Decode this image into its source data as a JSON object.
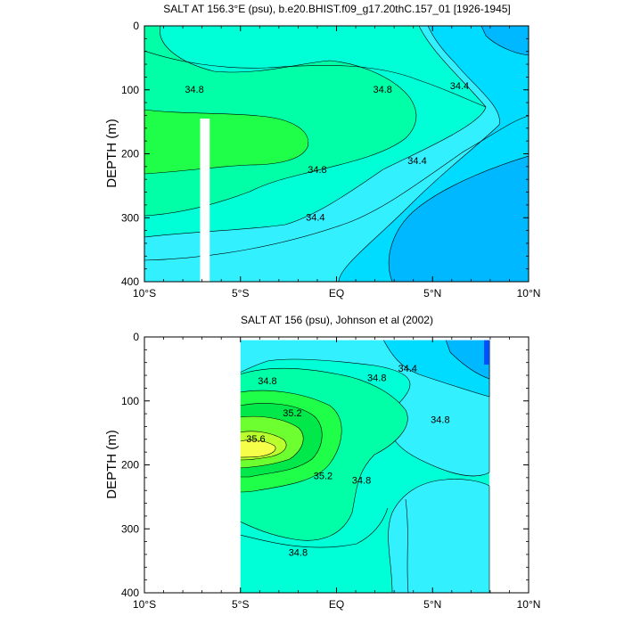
{
  "chart_data": [
    {
      "type": "heatmap",
      "title": "SALT AT 156.3°E (psu), b.e20.BHIST.f09_g17.20thC.157_01 [1926-1945]",
      "ylabel": "DEPTH (m)",
      "xlim": [
        -10,
        10
      ],
      "ylim": [
        400,
        0
      ],
      "x_ticks": [
        -10,
        -5,
        0,
        5,
        10
      ],
      "x_tick_labels": [
        "10°S",
        "5°S",
        "EQ",
        "5°N",
        "10°N"
      ],
      "y_ticks": [
        0,
        100,
        200,
        300,
        400
      ],
      "y_tick_labels": [
        "0",
        "100",
        "200",
        "300",
        "400"
      ],
      "contour_labels": [
        {
          "text": "34.8",
          "x": -7.4,
          "y": 100
        },
        {
          "text": "34.8",
          "x": 2.4,
          "y": 100
        },
        {
          "text": "34.4",
          "x": 6.4,
          "y": 95
        },
        {
          "text": "34.8",
          "x": -1.0,
          "y": 226
        },
        {
          "text": "34.4",
          "x": 4.2,
          "y": 212
        },
        {
          "text": "34.4",
          "x": -1.1,
          "y": 300
        }
      ],
      "missing_columns": [
        {
          "x_from": -7.1,
          "x_to": -6.6,
          "depth_from": 145,
          "depth_to": 400
        }
      ],
      "missing_note": "white column marks missing data",
      "colors": {
        "34.0-34.2": "#00b8ff",
        "34.2-34.4": "#00dcff",
        "34.4-34.6": "#33f0ff",
        "34.6-34.8": "#00ffd7",
        "34.8-35.0": "#00ffa6",
        "35.0-35.2": "#1fff49"
      }
    },
    {
      "type": "heatmap",
      "title": "SALT AT 156 (psu), Johnson et al (2002)",
      "ylabel": "DEPTH (m)",
      "xlim": [
        -10,
        10
      ],
      "ylim": [
        400,
        0
      ],
      "x_ticks": [
        -10,
        -5,
        0,
        5,
        10
      ],
      "x_tick_labels": [
        "10°S",
        "5°S",
        "EQ",
        "5°N",
        "10°N"
      ],
      "y_ticks": [
        0,
        100,
        200,
        300,
        400
      ],
      "y_tick_labels": [
        "0",
        "100",
        "200",
        "300",
        "400"
      ],
      "data_extent_x": [
        -5,
        8
      ],
      "data_extent_depth": [
        5,
        400
      ],
      "contour_labels": [
        {
          "text": "34.8",
          "x": -3.6,
          "y": 70
        },
        {
          "text": "34.8",
          "x": 2.1,
          "y": 65
        },
        {
          "text": "34.4",
          "x": 3.7,
          "y": 50
        },
        {
          "text": "35.2",
          "x": -2.3,
          "y": 120
        },
        {
          "text": "35.6",
          "x": -4.2,
          "y": 160
        },
        {
          "text": "34.8",
          "x": 5.4,
          "y": 130
        },
        {
          "text": "35.2",
          "x": -0.7,
          "y": 218
        },
        {
          "text": "34.8",
          "x": 1.3,
          "y": 225
        },
        {
          "text": "34.8",
          "x": -2.0,
          "y": 338
        }
      ],
      "colors": {
        "33.6-34.0": "#0050ff",
        "34.0-34.2": "#00b8ff",
        "34.2-34.4": "#00dcff",
        "34.4-34.6": "#33f0ff",
        "34.6-34.8": "#00ffd7",
        "34.8-35.0": "#00ffa6",
        "35.0-35.2": "#1fff49",
        "35.2-35.4": "#00e84a",
        "35.4-35.6": "#6dff2f",
        "35.6-35.8": "#b9ff2e",
        "35.8-36.0": "#f5ff4a"
      }
    }
  ]
}
